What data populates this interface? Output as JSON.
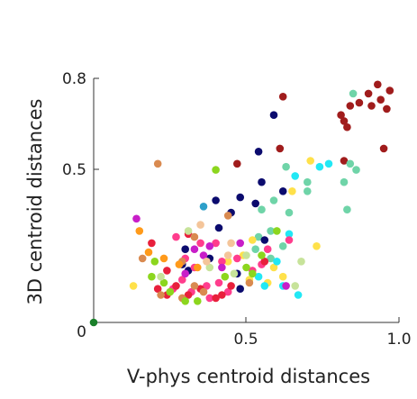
{
  "chart_data": {
    "type": "scatter",
    "title": "",
    "xlabel": "V-phys centroid distances",
    "ylabel": "3D centroid distances",
    "xlim": [
      0,
      1.0
    ],
    "ylim": [
      0,
      0.8
    ],
    "grid": false,
    "x_ticks": [
      {
        "value": 0.5,
        "label": "0.5"
      },
      {
        "value": 1.0,
        "label": "1.0"
      }
    ],
    "y_ticks": [
      {
        "value": 0.5,
        "label": "0.5"
      },
      {
        "value": 0.8,
        "label": "0.8"
      }
    ],
    "origin_label": "0",
    "series": [
      {
        "color": "#a01c1c",
        "points": [
          [
            0.62,
            0.74
          ],
          [
            0.81,
            0.68
          ],
          [
            0.82,
            0.66
          ],
          [
            0.83,
            0.64
          ],
          [
            0.84,
            0.71
          ],
          [
            0.87,
            0.72
          ],
          [
            0.9,
            0.75
          ],
          [
            0.91,
            0.71
          ],
          [
            0.93,
            0.78
          ],
          [
            0.94,
            0.73
          ],
          [
            0.95,
            0.57
          ],
          [
            0.96,
            0.7
          ],
          [
            0.97,
            0.76
          ],
          [
            0.82,
            0.53
          ],
          [
            0.61,
            0.57
          ],
          [
            0.47,
            0.52
          ]
        ]
      },
      {
        "color": "#6fd4a8",
        "points": [
          [
            0.85,
            0.75
          ],
          [
            0.84,
            0.52
          ],
          [
            0.86,
            0.5
          ],
          [
            0.82,
            0.46
          ],
          [
            0.83,
            0.37
          ],
          [
            0.7,
            0.46
          ],
          [
            0.7,
            0.43
          ],
          [
            0.63,
            0.51
          ],
          [
            0.59,
            0.4
          ],
          [
            0.55,
            0.37
          ],
          [
            0.58,
            0.3
          ],
          [
            0.64,
            0.36
          ],
          [
            0.54,
            0.28
          ],
          [
            0.62,
            0.25
          ],
          [
            0.58,
            0.21
          ],
          [
            0.53,
            0.24
          ]
        ]
      },
      {
        "color": "#0b0b6e",
        "points": [
          [
            0.59,
            0.68
          ],
          [
            0.54,
            0.56
          ],
          [
            0.62,
            0.43
          ],
          [
            0.55,
            0.46
          ],
          [
            0.48,
            0.41
          ],
          [
            0.53,
            0.39
          ],
          [
            0.4,
            0.4
          ],
          [
            0.45,
            0.36
          ],
          [
            0.41,
            0.31
          ],
          [
            0.56,
            0.27
          ],
          [
            0.3,
            0.24
          ],
          [
            0.38,
            0.21
          ],
          [
            0.47,
            0.16
          ],
          [
            0.48,
            0.11
          ],
          [
            0.31,
            0.17
          ],
          [
            0.29,
            0.19
          ]
        ]
      },
      {
        "color": "#ffe14a",
        "points": [
          [
            0.71,
            0.53
          ],
          [
            0.65,
            0.43
          ],
          [
            0.52,
            0.27
          ],
          [
            0.59,
            0.18
          ],
          [
            0.49,
            0.22
          ],
          [
            0.57,
            0.13
          ],
          [
            0.13,
            0.12
          ],
          [
            0.73,
            0.25
          ],
          [
            0.62,
            0.15
          ],
          [
            0.44,
            0.2
          ],
          [
            0.51,
            0.14
          ]
        ]
      },
      {
        "color": "#22e8f5",
        "points": [
          [
            0.77,
            0.52
          ],
          [
            0.66,
            0.48
          ],
          [
            0.74,
            0.51
          ],
          [
            0.64,
            0.29
          ],
          [
            0.56,
            0.12
          ],
          [
            0.62,
            0.12
          ],
          [
            0.67,
            0.09
          ],
          [
            0.54,
            0.15
          ],
          [
            0.6,
            0.2
          ]
        ]
      },
      {
        "color": "#ff3d8d",
        "points": [
          [
            0.57,
            0.24
          ],
          [
            0.64,
            0.27
          ],
          [
            0.55,
            0.19
          ],
          [
            0.52,
            0.17
          ],
          [
            0.47,
            0.21
          ],
          [
            0.42,
            0.2
          ],
          [
            0.37,
            0.12
          ],
          [
            0.38,
            0.08
          ],
          [
            0.41,
            0.13
          ],
          [
            0.4,
            0.26
          ],
          [
            0.3,
            0.21
          ],
          [
            0.33,
            0.18
          ],
          [
            0.29,
            0.14
          ],
          [
            0.26,
            0.11
          ],
          [
            0.35,
            0.26
          ],
          [
            0.27,
            0.28
          ],
          [
            0.32,
            0.1
          ],
          [
            0.44,
            0.1
          ]
        ]
      },
      {
        "color": "#e8203c",
        "points": [
          [
            0.24,
            0.17
          ],
          [
            0.21,
            0.11
          ],
          [
            0.24,
            0.09
          ],
          [
            0.27,
            0.12
          ],
          [
            0.31,
            0.09
          ],
          [
            0.35,
            0.11
          ],
          [
            0.4,
            0.08
          ],
          [
            0.42,
            0.09
          ],
          [
            0.45,
            0.12
          ],
          [
            0.56,
            0.2
          ],
          [
            0.19,
            0.26
          ],
          [
            0.31,
            0.29
          ]
        ]
      },
      {
        "color": "#d98a50",
        "points": [
          [
            0.21,
            0.52
          ],
          [
            0.44,
            0.35
          ],
          [
            0.33,
            0.28
          ],
          [
            0.16,
            0.21
          ],
          [
            0.29,
            0.2
          ],
          [
            0.33,
            0.12
          ],
          [
            0.36,
            0.1
          ],
          [
            0.22,
            0.09
          ],
          [
            0.51,
            0.13
          ],
          [
            0.29,
            0.08
          ]
        ]
      },
      {
        "color": "#ff9a1a",
        "points": [
          [
            0.15,
            0.3
          ],
          [
            0.18,
            0.23
          ],
          [
            0.23,
            0.21
          ],
          [
            0.28,
            0.19
          ],
          [
            0.34,
            0.18
          ]
        ]
      },
      {
        "color": "#8cd61e",
        "points": [
          [
            0.4,
            0.5
          ],
          [
            0.2,
            0.2
          ],
          [
            0.19,
            0.15
          ],
          [
            0.23,
            0.13
          ],
          [
            0.25,
            0.1
          ],
          [
            0.3,
            0.07
          ],
          [
            0.34,
            0.07
          ],
          [
            0.43,
            0.15
          ],
          [
            0.5,
            0.18
          ],
          [
            0.52,
            0.16
          ],
          [
            0.55,
            0.22
          ],
          [
            0.6,
            0.3
          ]
        ]
      },
      {
        "color": "#c81ec8",
        "points": [
          [
            0.14,
            0.34
          ],
          [
            0.36,
            0.22
          ],
          [
            0.38,
            0.25
          ],
          [
            0.42,
            0.18
          ],
          [
            0.33,
            0.24
          ],
          [
            0.3,
            0.16
          ],
          [
            0.48,
            0.26
          ],
          [
            0.63,
            0.12
          ]
        ]
      },
      {
        "color": "#2d9fc9",
        "points": [
          [
            0.36,
            0.38
          ]
        ]
      },
      {
        "color": "#c7e39a",
        "points": [
          [
            0.22,
            0.15
          ],
          [
            0.38,
            0.18
          ],
          [
            0.46,
            0.16
          ],
          [
            0.66,
            0.12
          ],
          [
            0.5,
            0.22
          ],
          [
            0.31,
            0.3
          ],
          [
            0.68,
            0.2
          ]
        ]
      },
      {
        "color": "#f4c59a",
        "points": [
          [
            0.37,
            0.2
          ],
          [
            0.45,
            0.26
          ],
          [
            0.44,
            0.22
          ],
          [
            0.35,
            0.32
          ]
        ]
      },
      {
        "color": "#1a7f2a",
        "points": [
          [
            0.0,
            0.0
          ]
        ]
      }
    ]
  }
}
